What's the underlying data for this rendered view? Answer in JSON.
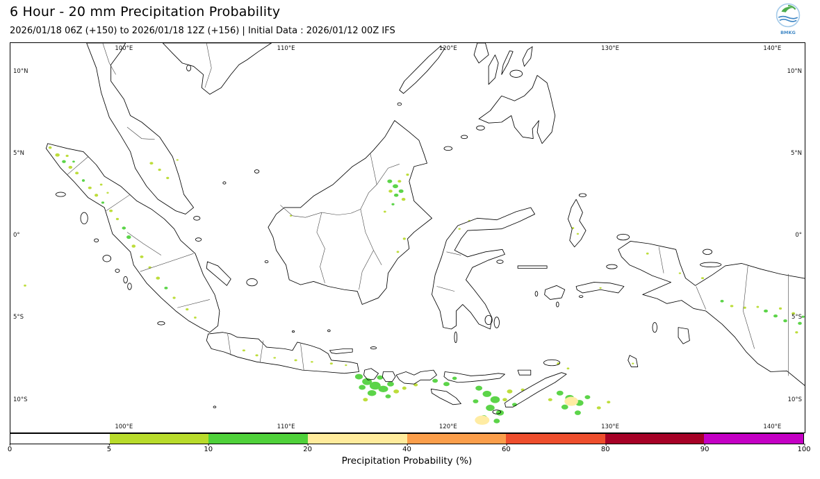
{
  "header": {
    "title": "6 Hour - 20 mm Precipitation Probability",
    "subtitle": "2026/01/18 06Z (+150) to 2026/01/18 12Z (+156) | Initial Data : 2026/01/12 00Z IFS",
    "logo_text": "BMKG"
  },
  "map": {
    "extent": {
      "lon_min": 93,
      "lon_max": 142,
      "lat_min": -12,
      "lat_max": 11.72
    },
    "lon_ticks": [
      {
        "lon": 100,
        "label": "100°E"
      },
      {
        "lon": 110,
        "label": "110°E"
      },
      {
        "lon": 120,
        "label": "120°E"
      },
      {
        "lon": 130,
        "label": "130°E"
      },
      {
        "lon": 140,
        "label": "140°E"
      }
    ],
    "lat_ticks": [
      {
        "lat": 10,
        "label": "10°N"
      },
      {
        "lat": 5,
        "label": "5°N"
      },
      {
        "lat": 0,
        "label": "0°"
      },
      {
        "lat": -5,
        "label": "5°S"
      },
      {
        "lat": -10,
        "label": "10°S"
      }
    ]
  },
  "colorbar": {
    "label": "Precipitation Probability (%)",
    "ticks": [
      0,
      5,
      10,
      20,
      40,
      60,
      80,
      90,
      100
    ],
    "colors": [
      "#ffffff",
      "#b8db2b",
      "#4fd13a",
      "#ffeb9c",
      "#fb9e4b",
      "#ee4e2d",
      "#a60126",
      "#c400c4"
    ]
  },
  "chart_data": {
    "type": "heatmap",
    "title": "6 Hour - 20 mm Precipitation Probability",
    "legend_label": "Precipitation Probability (%)",
    "scale_ticks_percent": [
      0,
      5,
      10,
      20,
      40,
      60,
      80,
      90,
      100
    ],
    "scale_colors": [
      "#ffffff",
      "#b8db2b",
      "#4fd13a",
      "#ffeb9c",
      "#fb9e4b",
      "#ee4e2d",
      "#a60126",
      "#c400c4"
    ],
    "bins": [
      {
        "range_percent": "5-10",
        "color": "#b8db2b"
      },
      {
        "range_percent": "10-20",
        "color": "#4fd13a"
      },
      {
        "range_percent": "20-40",
        "color": "#ffeb9c"
      }
    ],
    "points_format": [
      "lon_deg_east",
      "lat_deg_north",
      "rx_deg",
      "ry_deg",
      "bin_index"
    ],
    "points": [
      [
        95.45,
        5.35,
        0.1,
        0.08,
        0
      ],
      [
        95.9,
        4.9,
        0.14,
        0.1,
        0
      ],
      [
        96.3,
        4.5,
        0.12,
        0.09,
        1
      ],
      [
        96.7,
        4.15,
        0.12,
        0.09,
        0
      ],
      [
        96.5,
        4.85,
        0.09,
        0.07,
        0
      ],
      [
        97.1,
        3.8,
        0.11,
        0.08,
        0
      ],
      [
        97.5,
        3.35,
        0.09,
        0.08,
        1
      ],
      [
        97.9,
        2.9,
        0.11,
        0.08,
        0
      ],
      [
        98.3,
        2.45,
        0.11,
        0.09,
        0
      ],
      [
        98.7,
        2.0,
        0.09,
        0.07,
        1
      ],
      [
        99.2,
        1.5,
        0.11,
        0.08,
        0
      ],
      [
        99.6,
        1.0,
        0.09,
        0.07,
        0
      ],
      [
        100.0,
        0.45,
        0.12,
        0.09,
        1
      ],
      [
        100.3,
        -0.1,
        0.14,
        0.11,
        1
      ],
      [
        100.6,
        -0.65,
        0.12,
        0.09,
        0
      ],
      [
        101.1,
        -1.3,
        0.11,
        0.08,
        0
      ],
      [
        101.6,
        -1.95,
        0.09,
        0.07,
        0
      ],
      [
        102.1,
        -2.6,
        0.12,
        0.09,
        0
      ],
      [
        102.6,
        -3.2,
        0.11,
        0.08,
        1
      ],
      [
        103.1,
        -3.8,
        0.09,
        0.07,
        0
      ],
      [
        103.9,
        -4.5,
        0.09,
        0.07,
        0
      ],
      [
        104.4,
        -5.0,
        0.08,
        0.06,
        0
      ],
      [
        96.9,
        4.5,
        0.08,
        0.06,
        1
      ],
      [
        98.6,
        3.1,
        0.08,
        0.06,
        0
      ],
      [
        99.0,
        2.6,
        0.07,
        0.05,
        0
      ],
      [
        93.9,
        -3.05,
        0.08,
        0.06,
        0
      ],
      [
        101.7,
        4.4,
        0.11,
        0.08,
        0
      ],
      [
        102.2,
        4.0,
        0.09,
        0.07,
        0
      ],
      [
        102.7,
        3.5,
        0.09,
        0.07,
        0
      ],
      [
        103.3,
        4.6,
        0.07,
        0.05,
        0
      ],
      [
        116.4,
        3.3,
        0.15,
        0.11,
        1
      ],
      [
        116.75,
        3.0,
        0.17,
        0.12,
        1
      ],
      [
        117.1,
        2.7,
        0.15,
        0.11,
        1
      ],
      [
        116.8,
        2.45,
        0.14,
        0.1,
        1
      ],
      [
        117.25,
        2.2,
        0.12,
        0.09,
        0
      ],
      [
        116.45,
        2.7,
        0.12,
        0.09,
        0
      ],
      [
        117.0,
        3.3,
        0.11,
        0.08,
        0
      ],
      [
        116.6,
        1.9,
        0.09,
        0.07,
        1
      ],
      [
        117.5,
        3.7,
        0.09,
        0.07,
        0
      ],
      [
        116.1,
        1.45,
        0.08,
        0.06,
        0
      ],
      [
        117.3,
        -0.2,
        0.09,
        0.07,
        0
      ],
      [
        116.9,
        -1.0,
        0.08,
        0.06,
        0
      ],
      [
        110.3,
        1.2,
        0.07,
        0.05,
        0
      ],
      [
        107.4,
        -7.0,
        0.09,
        0.06,
        0
      ],
      [
        108.2,
        -7.3,
        0.09,
        0.06,
        0
      ],
      [
        109.3,
        -7.45,
        0.08,
        0.05,
        0
      ],
      [
        110.6,
        -7.6,
        0.09,
        0.06,
        0
      ],
      [
        111.6,
        -7.7,
        0.08,
        0.05,
        0
      ],
      [
        112.8,
        -7.8,
        0.09,
        0.06,
        0
      ],
      [
        113.7,
        -7.9,
        0.07,
        0.05,
        0
      ],
      [
        114.5,
        -8.6,
        0.24,
        0.17,
        1
      ],
      [
        115.0,
        -8.9,
        0.3,
        0.21,
        1
      ],
      [
        115.5,
        -9.15,
        0.34,
        0.24,
        1
      ],
      [
        116.0,
        -9.35,
        0.3,
        0.2,
        1
      ],
      [
        115.3,
        -9.6,
        0.27,
        0.18,
        1
      ],
      [
        114.7,
        -9.25,
        0.21,
        0.15,
        1
      ],
      [
        116.45,
        -9.05,
        0.21,
        0.15,
        1
      ],
      [
        115.8,
        -8.65,
        0.19,
        0.13,
        1
      ],
      [
        116.8,
        -9.5,
        0.17,
        0.12,
        0
      ],
      [
        114.9,
        -10.0,
        0.15,
        0.11,
        0
      ],
      [
        116.3,
        -9.8,
        0.17,
        0.12,
        1
      ],
      [
        117.3,
        -9.3,
        0.13,
        0.1,
        0
      ],
      [
        118.0,
        -9.1,
        0.13,
        0.09,
        0
      ],
      [
        119.2,
        -8.85,
        0.17,
        0.12,
        1
      ],
      [
        119.9,
        -9.05,
        0.19,
        0.13,
        1
      ],
      [
        120.4,
        -8.7,
        0.14,
        0.1,
        1
      ],
      [
        121.9,
        -9.3,
        0.21,
        0.15,
        1
      ],
      [
        122.4,
        -9.65,
        0.27,
        0.19,
        1
      ],
      [
        122.9,
        -10.0,
        0.29,
        0.21,
        1
      ],
      [
        122.6,
        -10.5,
        0.27,
        0.19,
        1
      ],
      [
        123.2,
        -10.8,
        0.24,
        0.17,
        1
      ],
      [
        122.2,
        -11.1,
        0.21,
        0.15,
        1
      ],
      [
        123.0,
        -11.3,
        0.19,
        0.14,
        1
      ],
      [
        121.7,
        -10.1,
        0.17,
        0.12,
        1
      ],
      [
        123.8,
        -9.5,
        0.17,
        0.12,
        0
      ],
      [
        124.1,
        -10.3,
        0.15,
        0.11,
        1
      ],
      [
        122.1,
        -11.25,
        0.45,
        0.28,
        2
      ],
      [
        123.5,
        -10.0,
        0.14,
        0.1,
        0
      ],
      [
        124.6,
        -9.4,
        0.11,
        0.08,
        0
      ],
      [
        126.9,
        -9.6,
        0.21,
        0.15,
        1
      ],
      [
        127.5,
        -9.9,
        0.27,
        0.19,
        1
      ],
      [
        128.1,
        -10.2,
        0.25,
        0.18,
        1
      ],
      [
        127.2,
        -10.45,
        0.21,
        0.15,
        1
      ],
      [
        128.0,
        -10.8,
        0.19,
        0.14,
        1
      ],
      [
        128.6,
        -9.85,
        0.17,
        0.12,
        1
      ],
      [
        127.6,
        -10.1,
        0.42,
        0.28,
        2
      ],
      [
        129.3,
        -10.5,
        0.13,
        0.09,
        0
      ],
      [
        126.3,
        -10.0,
        0.13,
        0.09,
        0
      ],
      [
        129.9,
        -10.15,
        0.11,
        0.08,
        0
      ],
      [
        126.8,
        -7.8,
        0.09,
        0.07,
        0
      ],
      [
        127.4,
        -8.1,
        0.08,
        0.06,
        0
      ],
      [
        120.7,
        0.4,
        0.07,
        0.05,
        0
      ],
      [
        121.3,
        0.9,
        0.06,
        0.05,
        0
      ],
      [
        127.7,
        0.45,
        0.08,
        0.06,
        0
      ],
      [
        128.0,
        0.1,
        0.07,
        0.05,
        0
      ],
      [
        129.4,
        -3.2,
        0.07,
        0.05,
        0
      ],
      [
        132.3,
        -1.1,
        0.08,
        0.06,
        0
      ],
      [
        135.7,
        -2.6,
        0.09,
        0.06,
        0
      ],
      [
        134.3,
        -2.3,
        0.07,
        0.05,
        0
      ],
      [
        131.4,
        -7.8,
        0.07,
        0.05,
        0
      ],
      [
        136.9,
        -4.0,
        0.11,
        0.08,
        1
      ],
      [
        137.5,
        -4.3,
        0.1,
        0.07,
        0
      ],
      [
        138.3,
        -4.4,
        0.09,
        0.07,
        0
      ],
      [
        139.1,
        -4.35,
        0.08,
        0.06,
        0
      ],
      [
        139.6,
        -4.6,
        0.13,
        0.09,
        1
      ],
      [
        140.2,
        -4.9,
        0.13,
        0.09,
        1
      ],
      [
        140.8,
        -5.2,
        0.12,
        0.09,
        1
      ],
      [
        141.3,
        -4.75,
        0.11,
        0.08,
        0
      ],
      [
        141.7,
        -5.35,
        0.12,
        0.09,
        1
      ],
      [
        140.5,
        -4.45,
        0.09,
        0.07,
        0
      ],
      [
        141.9,
        -4.95,
        0.09,
        0.07,
        1
      ],
      [
        141.5,
        -5.9,
        0.09,
        0.07,
        0
      ]
    ]
  }
}
